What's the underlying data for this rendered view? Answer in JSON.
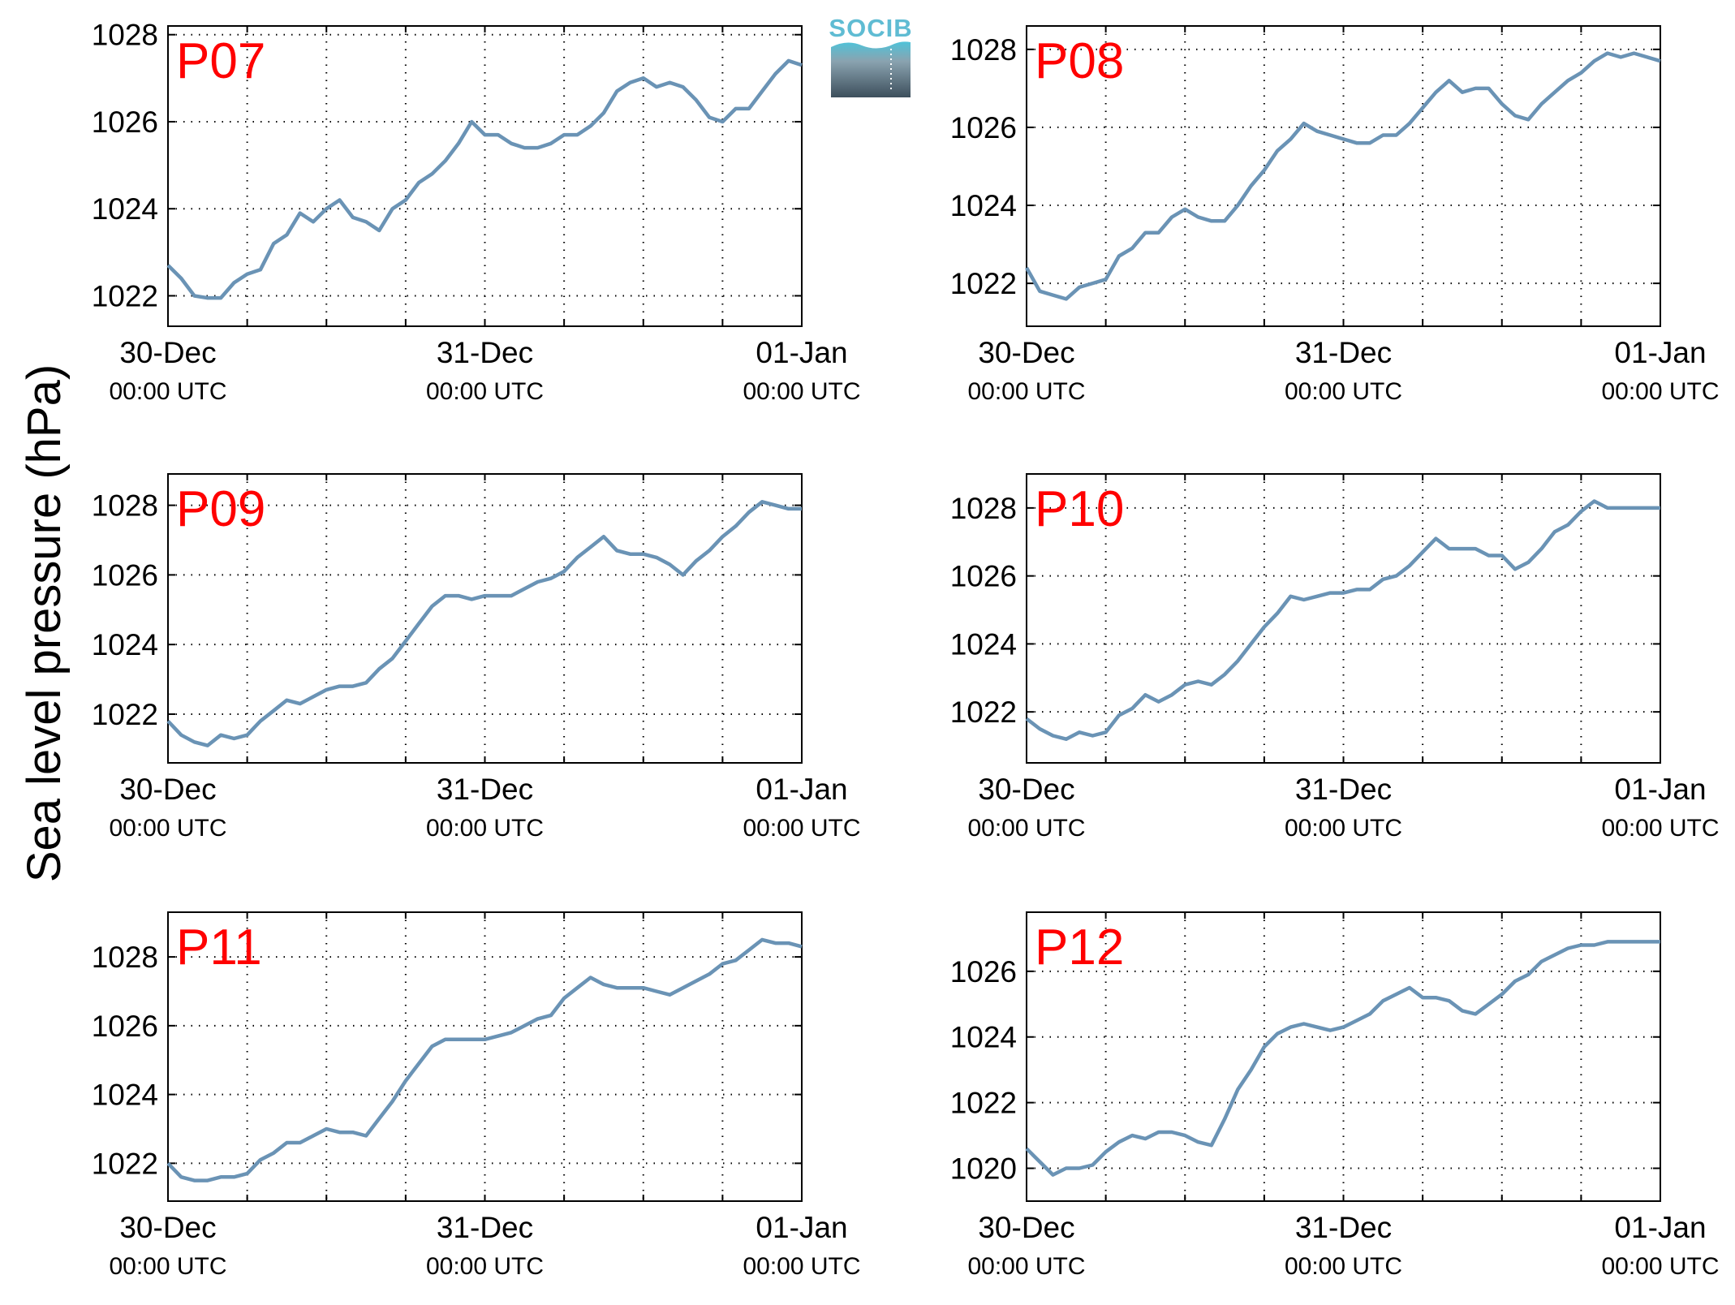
{
  "ylabel": "Sea level pressure (hPa)",
  "logo": {
    "text": "SOCIB"
  },
  "colors": {
    "line": "#6a93b5",
    "panel_label": "#ff0000",
    "logo_text": "#5fbcd3",
    "logo_top": "#4fc3d9",
    "logo_bottom": "#3d4f5c"
  },
  "chart_data": [
    {
      "type": "line",
      "panel": "P07",
      "x_ticks": [
        {
          "top": "30-Dec",
          "bottom": "00:00 UTC"
        },
        {
          "top": "31-Dec",
          "bottom": "00:00 UTC"
        },
        {
          "top": "01-Jan",
          "bottom": "00:00 UTC"
        }
      ],
      "xlim": [
        "2013-12-30 00:00",
        "2014-01-01 00:00"
      ],
      "ylim": [
        1021.3,
        1028.2
      ],
      "y_ticks": [
        1022,
        1024,
        1026,
        1028
      ],
      "grid": true,
      "x_hours": [
        0,
        1,
        2,
        3,
        4,
        5,
        6,
        7,
        8,
        9,
        10,
        11,
        12,
        13,
        14,
        15,
        16,
        17,
        18,
        19,
        20,
        21,
        22,
        23,
        24,
        25,
        26,
        27,
        28,
        29,
        30,
        31,
        32,
        33,
        34,
        35,
        36,
        37,
        38,
        39,
        40,
        41,
        42,
        43,
        44,
        45,
        46,
        47,
        48
      ],
      "values": [
        1022.7,
        1022.4,
        1022.0,
        1021.95,
        1021.95,
        1022.3,
        1022.5,
        1022.6,
        1023.2,
        1023.4,
        1023.9,
        1023.7,
        1024.0,
        1024.2,
        1023.8,
        1023.7,
        1023.5,
        1024.0,
        1024.2,
        1024.6,
        1024.8,
        1025.1,
        1025.5,
        1026.0,
        1025.7,
        1025.7,
        1025.5,
        1025.4,
        1025.4,
        1025.5,
        1025.7,
        1025.7,
        1025.9,
        1026.2,
        1026.7,
        1026.9,
        1027.0,
        1026.8,
        1026.9,
        1026.8,
        1026.5,
        1026.1,
        1026.0,
        1026.3,
        1026.3,
        1026.7,
        1027.1,
        1027.4,
        1027.3
      ]
    },
    {
      "type": "line",
      "panel": "P08",
      "x_ticks": [
        {
          "top": "30-Dec",
          "bottom": "00:00 UTC"
        },
        {
          "top": "31-Dec",
          "bottom": "00:00 UTC"
        },
        {
          "top": "01-Jan",
          "bottom": "00:00 UTC"
        }
      ],
      "xlim": [
        "2013-12-30 00:00",
        "2014-01-01 00:00"
      ],
      "ylim": [
        1020.9,
        1028.6
      ],
      "y_ticks": [
        1022,
        1024,
        1026,
        1028
      ],
      "grid": true,
      "x_hours": [
        0,
        1,
        2,
        3,
        4,
        5,
        6,
        7,
        8,
        9,
        10,
        11,
        12,
        13,
        14,
        15,
        16,
        17,
        18,
        19,
        20,
        21,
        22,
        23,
        24,
        25,
        26,
        27,
        28,
        29,
        30,
        31,
        32,
        33,
        34,
        35,
        36,
        37,
        38,
        39,
        40,
        41,
        42,
        43,
        44,
        45,
        46,
        47,
        48
      ],
      "values": [
        1022.4,
        1021.8,
        1021.7,
        1021.6,
        1021.9,
        1022.0,
        1022.1,
        1022.7,
        1022.9,
        1023.3,
        1023.3,
        1023.7,
        1023.9,
        1023.7,
        1023.6,
        1023.6,
        1024.0,
        1024.5,
        1024.9,
        1025.4,
        1025.7,
        1026.1,
        1025.9,
        1025.8,
        1025.7,
        1025.6,
        1025.6,
        1025.8,
        1025.8,
        1026.1,
        1026.5,
        1026.9,
        1027.2,
        1026.9,
        1027.0,
        1027.0,
        1026.6,
        1026.3,
        1026.2,
        1026.6,
        1026.9,
        1027.2,
        1027.4,
        1027.7,
        1027.9,
        1027.8,
        1027.9,
        1027.8,
        1027.7
      ]
    },
    {
      "type": "line",
      "panel": "P09",
      "x_ticks": [
        {
          "top": "30-Dec",
          "bottom": "00:00 UTC"
        },
        {
          "top": "31-Dec",
          "bottom": "00:00 UTC"
        },
        {
          "top": "01-Jan",
          "bottom": "00:00 UTC"
        }
      ],
      "xlim": [
        "2013-12-30 00:00",
        "2014-01-01 00:00"
      ],
      "ylim": [
        1020.6,
        1028.9
      ],
      "y_ticks": [
        1022,
        1024,
        1026,
        1028
      ],
      "grid": true,
      "x_hours": [
        0,
        1,
        2,
        3,
        4,
        5,
        6,
        7,
        8,
        9,
        10,
        11,
        12,
        13,
        14,
        15,
        16,
        17,
        18,
        19,
        20,
        21,
        22,
        23,
        24,
        25,
        26,
        27,
        28,
        29,
        30,
        31,
        32,
        33,
        34,
        35,
        36,
        37,
        38,
        39,
        40,
        41,
        42,
        43,
        44,
        45,
        46,
        47,
        48
      ],
      "values": [
        1021.8,
        1021.4,
        1021.2,
        1021.1,
        1021.4,
        1021.3,
        1021.4,
        1021.8,
        1022.1,
        1022.4,
        1022.3,
        1022.5,
        1022.7,
        1022.8,
        1022.8,
        1022.9,
        1023.3,
        1023.6,
        1024.1,
        1024.6,
        1025.1,
        1025.4,
        1025.4,
        1025.3,
        1025.4,
        1025.4,
        1025.4,
        1025.6,
        1025.8,
        1025.9,
        1026.1,
        1026.5,
        1026.8,
        1027.1,
        1026.7,
        1026.6,
        1026.6,
        1026.5,
        1026.3,
        1026.0,
        1026.4,
        1026.7,
        1027.1,
        1027.4,
        1027.8,
        1028.1,
        1028.0,
        1027.9,
        1027.9
      ]
    },
    {
      "type": "line",
      "panel": "P10",
      "x_ticks": [
        {
          "top": "30-Dec",
          "bottom": "00:00 UTC"
        },
        {
          "top": "31-Dec",
          "bottom": "00:00 UTC"
        },
        {
          "top": "01-Jan",
          "bottom": "00:00 UTC"
        }
      ],
      "xlim": [
        "2013-12-30 00:00",
        "2014-01-01 00:00"
      ],
      "ylim": [
        1020.5,
        1029.0
      ],
      "y_ticks": [
        1022,
        1024,
        1026,
        1028
      ],
      "grid": true,
      "x_hours": [
        0,
        1,
        2,
        3,
        4,
        5,
        6,
        7,
        8,
        9,
        10,
        11,
        12,
        13,
        14,
        15,
        16,
        17,
        18,
        19,
        20,
        21,
        22,
        23,
        24,
        25,
        26,
        27,
        28,
        29,
        30,
        31,
        32,
        33,
        34,
        35,
        36,
        37,
        38,
        39,
        40,
        41,
        42,
        43,
        44,
        45,
        46,
        47,
        48
      ],
      "values": [
        1021.8,
        1021.5,
        1021.3,
        1021.2,
        1021.4,
        1021.3,
        1021.4,
        1021.9,
        1022.1,
        1022.5,
        1022.3,
        1022.5,
        1022.8,
        1022.9,
        1022.8,
        1023.1,
        1023.5,
        1024.0,
        1024.5,
        1024.9,
        1025.4,
        1025.3,
        1025.4,
        1025.5,
        1025.5,
        1025.6,
        1025.6,
        1025.9,
        1026.0,
        1026.3,
        1026.7,
        1027.1,
        1026.8,
        1026.8,
        1026.8,
        1026.6,
        1026.6,
        1026.2,
        1026.4,
        1026.8,
        1027.3,
        1027.5,
        1027.9,
        1028.2,
        1028.0,
        1028.0,
        1028.0,
        1028.0,
        1028.0
      ]
    },
    {
      "type": "line",
      "panel": "P11",
      "x_ticks": [
        {
          "top": "30-Dec",
          "bottom": "00:00 UTC"
        },
        {
          "top": "31-Dec",
          "bottom": "00:00 UTC"
        },
        {
          "top": "01-Jan",
          "bottom": "00:00 UTC"
        }
      ],
      "xlim": [
        "2013-12-30 00:00",
        "2014-01-01 00:00"
      ],
      "ylim": [
        1020.9,
        1029.3
      ],
      "y_ticks": [
        1022,
        1024,
        1026,
        1028
      ],
      "grid": true,
      "x_hours": [
        0,
        1,
        2,
        3,
        4,
        5,
        6,
        7,
        8,
        9,
        10,
        11,
        12,
        13,
        14,
        15,
        16,
        17,
        18,
        19,
        20,
        21,
        22,
        23,
        24,
        25,
        26,
        27,
        28,
        29,
        30,
        31,
        32,
        33,
        34,
        35,
        36,
        37,
        38,
        39,
        40,
        41,
        42,
        43,
        44,
        45,
        46,
        47,
        48
      ],
      "values": [
        1022.0,
        1021.6,
        1021.5,
        1021.5,
        1021.6,
        1021.6,
        1021.7,
        1022.1,
        1022.3,
        1022.6,
        1022.6,
        1022.8,
        1023.0,
        1022.9,
        1022.9,
        1022.8,
        1023.3,
        1023.8,
        1024.4,
        1024.9,
        1025.4,
        1025.6,
        1025.6,
        1025.6,
        1025.6,
        1025.7,
        1025.8,
        1026.0,
        1026.2,
        1026.3,
        1026.8,
        1027.1,
        1027.4,
        1027.2,
        1027.1,
        1027.1,
        1027.1,
        1027.0,
        1026.9,
        1027.1,
        1027.3,
        1027.5,
        1027.8,
        1027.9,
        1028.2,
        1028.5,
        1028.4,
        1028.4,
        1028.3
      ]
    },
    {
      "type": "line",
      "panel": "P12",
      "x_ticks": [
        {
          "top": "30-Dec",
          "bottom": "00:00 UTC"
        },
        {
          "top": "31-Dec",
          "bottom": "00:00 UTC"
        },
        {
          "top": "01-Jan",
          "bottom": "00:00 UTC"
        }
      ],
      "xlim": [
        "2013-12-30 00:00",
        "2014-01-01 00:00"
      ],
      "ylim": [
        1019.0,
        1027.8
      ],
      "y_ticks": [
        1020,
        1022,
        1024,
        1026
      ],
      "grid": true,
      "x_hours": [
        0,
        1,
        2,
        3,
        4,
        5,
        6,
        7,
        8,
        9,
        10,
        11,
        12,
        13,
        14,
        15,
        16,
        17,
        18,
        19,
        20,
        21,
        22,
        23,
        24,
        25,
        26,
        27,
        28,
        29,
        30,
        31,
        32,
        33,
        34,
        35,
        36,
        37,
        38,
        39,
        40,
        41,
        42,
        43,
        44,
        45,
        46,
        47,
        48
      ],
      "values": [
        1020.6,
        1020.2,
        1019.8,
        1020.0,
        1020.0,
        1020.1,
        1020.5,
        1020.8,
        1021.0,
        1020.9,
        1021.1,
        1021.1,
        1021.0,
        1020.8,
        1020.7,
        1021.5,
        1022.4,
        1023.0,
        1023.7,
        1024.1,
        1024.3,
        1024.4,
        1024.3,
        1024.2,
        1024.3,
        1024.5,
        1024.7,
        1025.1,
        1025.3,
        1025.5,
        1025.2,
        1025.2,
        1025.1,
        1024.8,
        1024.7,
        1025.0,
        1025.3,
        1025.7,
        1025.9,
        1026.3,
        1026.5,
        1026.7,
        1026.8,
        1026.8,
        1026.9,
        1026.9,
        1026.9,
        1026.9,
        1026.9
      ]
    }
  ]
}
